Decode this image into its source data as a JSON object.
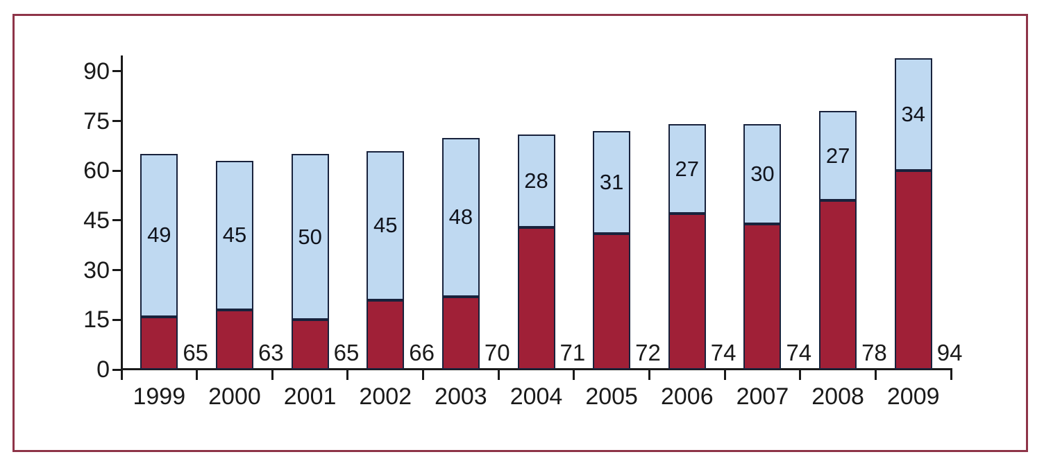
{
  "frame": {
    "border_color": "#8E3448"
  },
  "chart_data": {
    "type": "bar",
    "stacked": true,
    "title": "",
    "xlabel": "",
    "ylabel": "",
    "categories": [
      "1999",
      "2000",
      "2001",
      "2002",
      "2003",
      "2004",
      "2005",
      "2006",
      "2007",
      "2008",
      "2009"
    ],
    "series": [
      {
        "name": "red-lower-segment",
        "color": "#A02037",
        "values": [
          16,
          18,
          15,
          21,
          22,
          43,
          41,
          47,
          44,
          51,
          60
        ]
      },
      {
        "name": "blue-upper-segment",
        "color": "#BFD9F1",
        "values": [
          49,
          45,
          50,
          45,
          48,
          28,
          31,
          27,
          30,
          27,
          34
        ]
      }
    ],
    "segment_labels": [
      "49",
      "45",
      "50",
      "45",
      "48",
      "28",
      "31",
      "27",
      "30",
      "27",
      "34"
    ],
    "bar_total_labels": [
      "65",
      "63",
      "65",
      "66",
      "70",
      "71",
      "72",
      "74",
      "74",
      "78",
      "94"
    ],
    "y_ticks": [
      "0",
      "15",
      "30",
      "45",
      "60",
      "75",
      "90"
    ],
    "ylim": [
      0,
      95
    ],
    "grid": false,
    "legend": "none",
    "colors": {
      "bar_border": "#18223C",
      "axis": "#1A1A1A",
      "text": "#1A1A1A"
    }
  }
}
